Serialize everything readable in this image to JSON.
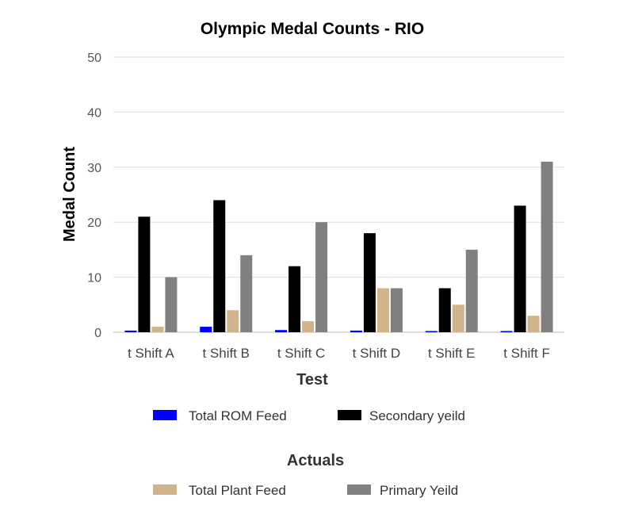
{
  "chart_data": {
    "type": "bar",
    "title": "Olympic Medal Counts - RIO",
    "xlabel": "Test",
    "ylabel": "Medal Count",
    "ylim": [
      0,
      50
    ],
    "yticks": [
      0,
      10,
      20,
      30,
      40,
      50
    ],
    "grid": true,
    "categories": [
      "t Shift A",
      "t Shift B",
      "t Shift C",
      "t Shift D",
      "t Shift E",
      "t Shift F"
    ],
    "series": [
      {
        "name": "Total ROM Feed",
        "color": "#0000ff",
        "values": [
          0.3,
          1,
          0.4,
          0.3,
          0.2,
          0.1
        ]
      },
      {
        "name": "Secondary yeild",
        "color": "#000000",
        "values": [
          21,
          24,
          12,
          18,
          8,
          23
        ]
      },
      {
        "name": "Total Plant Feed",
        "color": "#d2b48c",
        "values": [
          1,
          4,
          2,
          8,
          5,
          3
        ]
      },
      {
        "name": "Primary Yeild",
        "color": "#808080",
        "values": [
          10,
          14,
          20,
          8,
          15,
          31
        ]
      }
    ],
    "legend": {
      "groups": [
        {
          "title": "",
          "items": [
            "Total ROM Feed",
            "Secondary yeild"
          ]
        },
        {
          "title": "Actuals",
          "items": [
            "Total Plant Feed",
            "Primary Yeild"
          ]
        }
      ],
      "placement": "bottom"
    }
  }
}
